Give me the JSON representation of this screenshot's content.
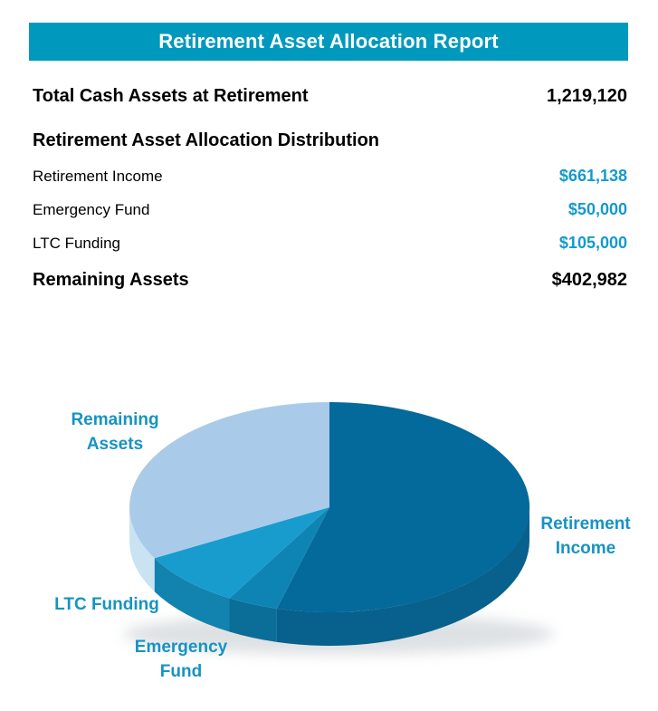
{
  "report": {
    "title": "Retirement Asset Allocation Report",
    "total_row": {
      "label": "Total Cash Assets at Retirement",
      "value": "1,219,120"
    },
    "section_heading": "Retirement Asset Allocation Distribution",
    "allocation_rows": [
      {
        "label": "Retirement Income",
        "value": "$661,138"
      },
      {
        "label": "Emergency Fund",
        "value": "$50,000"
      },
      {
        "label": "LTC Funding",
        "value": "$105,000"
      }
    ],
    "remaining_row": {
      "label": "Remaining Assets",
      "value": "$402,982"
    }
  },
  "colors": {
    "header_bar": "#0099BE",
    "accent_value": "#149ACB",
    "chart_label": "#1793C2",
    "body_text": "#000000"
  },
  "chart_data": {
    "type": "pie",
    "style": "3d",
    "title": "",
    "legend_position": "outside-labels",
    "start_angle_deg": 0,
    "direction": "clockwise",
    "labels": [
      "Retirement Income",
      "Emergency Fund",
      "LTC Funding",
      "Remaining Assets"
    ],
    "values": [
      661138,
      50000,
      105000,
      402982
    ],
    "percentages": [
      54.2,
      4.1,
      8.6,
      33.1
    ],
    "total": 1219120,
    "colors_top": [
      "#04699B",
      "#0E84B4",
      "#189CCE",
      "#A9CBE9"
    ],
    "colors_side": [
      "#07618C",
      "#0B6E98",
      "#1282AF",
      "#C9E3F3"
    ]
  }
}
